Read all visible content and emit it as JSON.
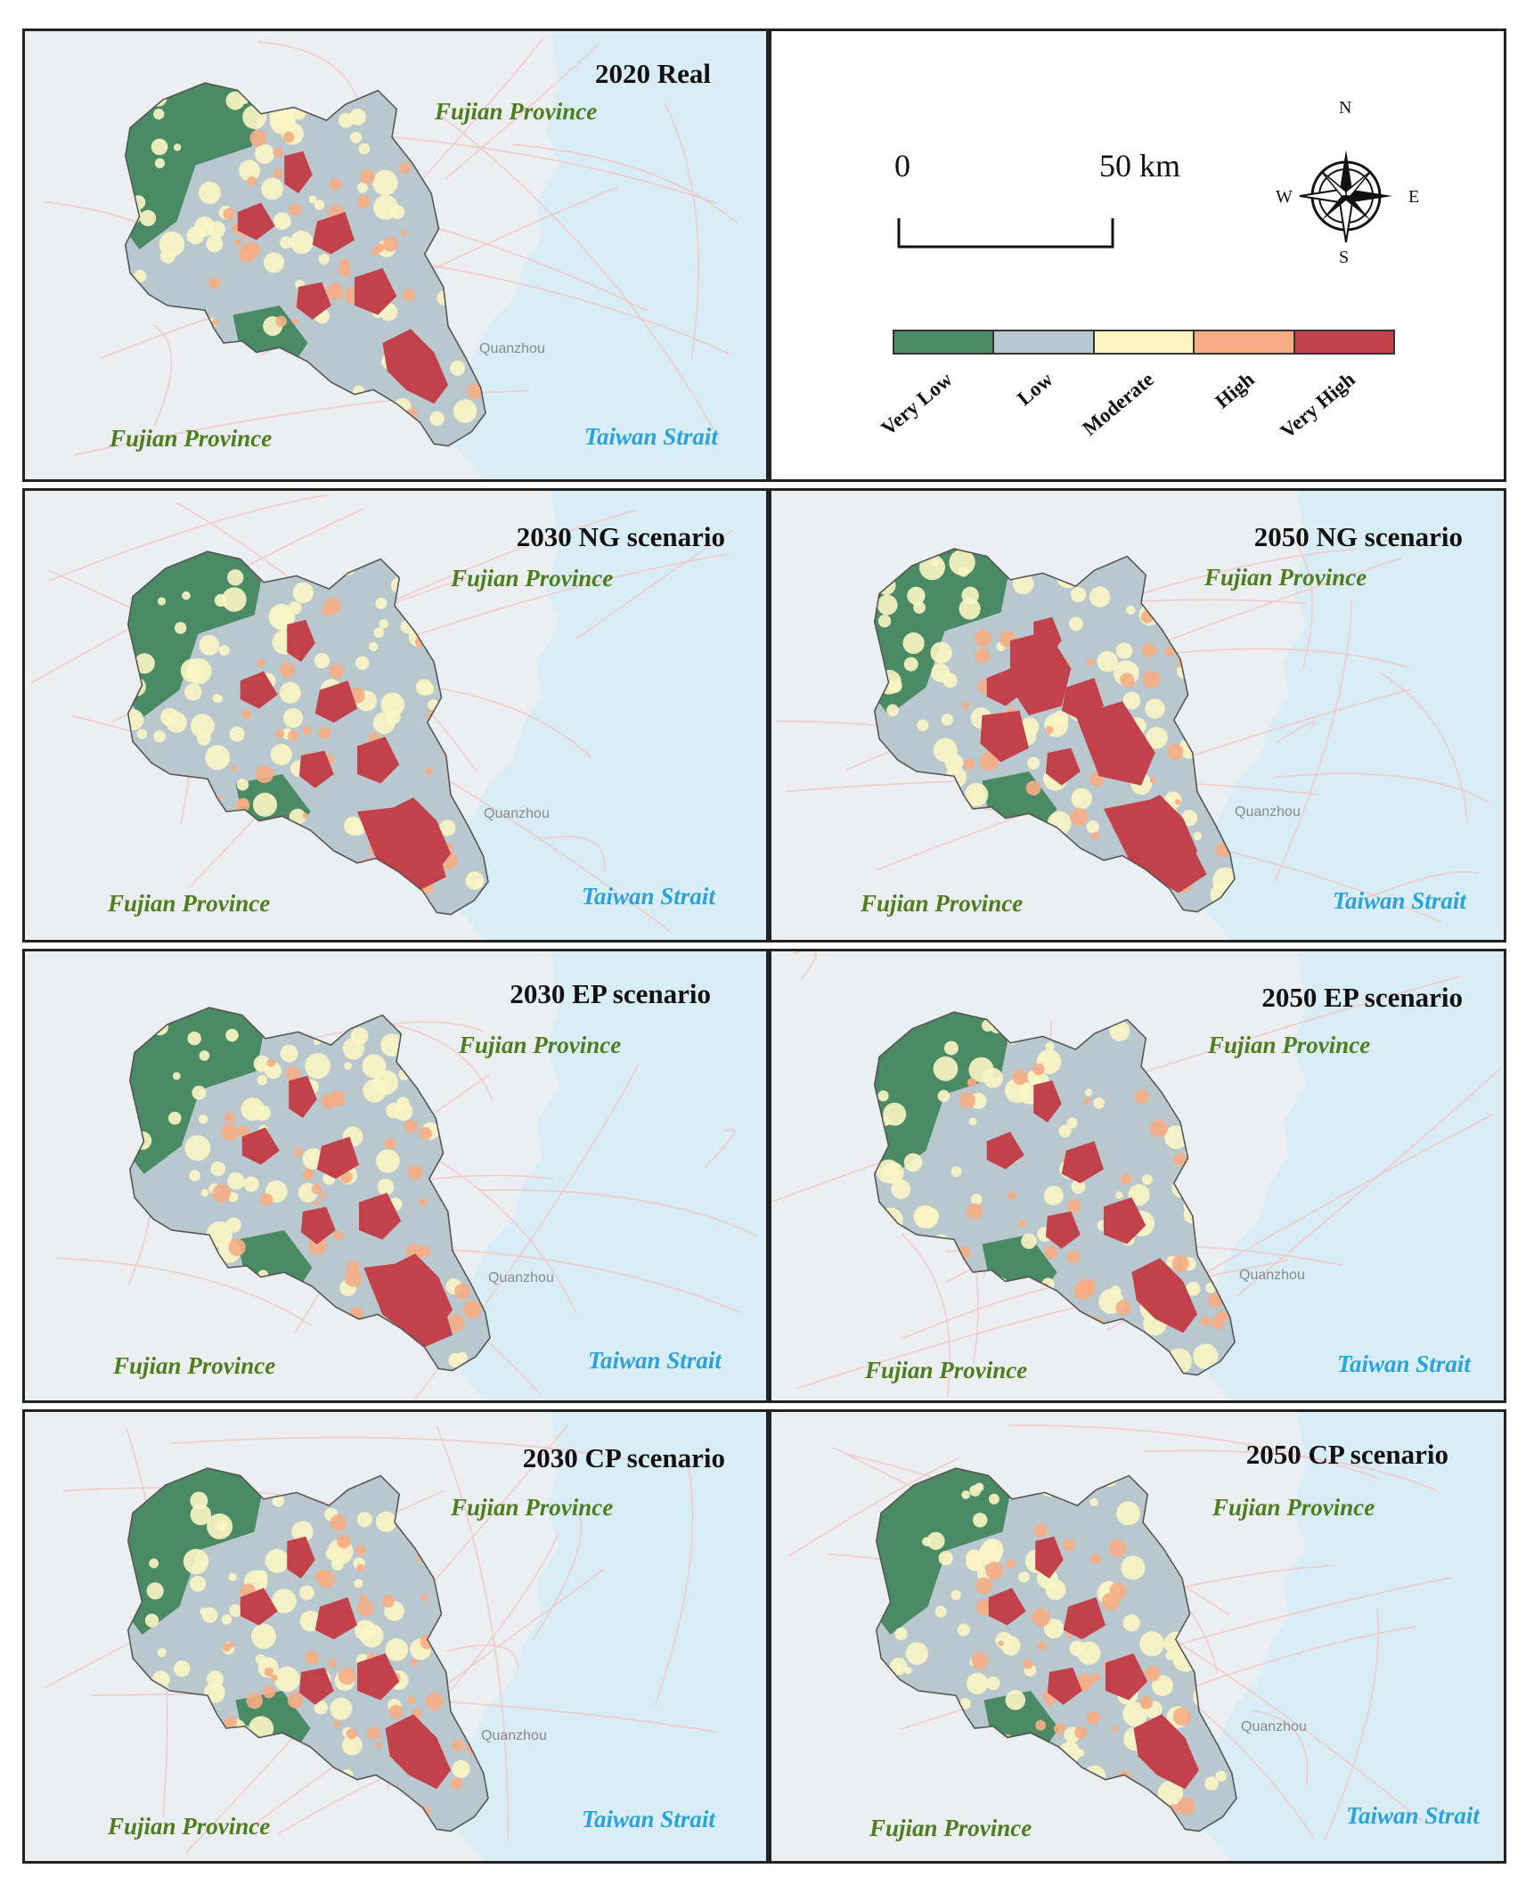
{
  "panels": [
    {
      "title": "2020 Real",
      "province_top": "Fujian Province",
      "province_bottom": "Fujian Province",
      "sea": "Taiwan Strait",
      "city": "Quanzhou"
    },
    {
      "title": "2030 NG scenario",
      "province_top": "Fujian Province",
      "province_bottom": "Fujian Province",
      "sea": "Taiwan Strait",
      "city": "Quanzhou"
    },
    {
      "title": "2050 NG scenario",
      "province_top": "Fujian Province",
      "province_bottom": "Fujian Province",
      "sea": "Taiwan Strait",
      "city": "Quanzhou"
    },
    {
      "title": "2030 EP scenario",
      "province_top": "Fujian Province",
      "province_bottom": "Fujian Province",
      "sea": "Taiwan Strait",
      "city": "Quanzhou"
    },
    {
      "title": "2050 EP scenario",
      "province_top": "Fujian Province",
      "province_bottom": "Fujian Province",
      "sea": "Taiwan Strait",
      "city": "Quanzhou"
    },
    {
      "title": "2030 CP scenario",
      "province_top": "Fujian Province",
      "province_bottom": "Fujian Province",
      "sea": "Taiwan Strait",
      "city": "Quanzhou"
    },
    {
      "title": "2050 CP scenario",
      "province_top": "Fujian Province",
      "province_bottom": "Fujian Province",
      "sea": "Taiwan Strait",
      "city": "Quanzhou"
    }
  ],
  "scale_bar": {
    "start": "0",
    "end": "50 km"
  },
  "compass": {
    "n": "N",
    "s": "S",
    "e": "E",
    "w": "W"
  },
  "legend": [
    {
      "label": "Very Low",
      "color": "#4a8a64"
    },
    {
      "label": "Low",
      "color": "#b9c7cf"
    },
    {
      "label": "Moderate",
      "color": "#fbf5c4"
    },
    {
      "label": "High",
      "color": "#f6ad84"
    },
    {
      "label": "Very High",
      "color": "#c2414a"
    }
  ],
  "colors": {
    "sea": "#d9edf6",
    "land": "#eceff1",
    "boundary": "#555555"
  }
}
